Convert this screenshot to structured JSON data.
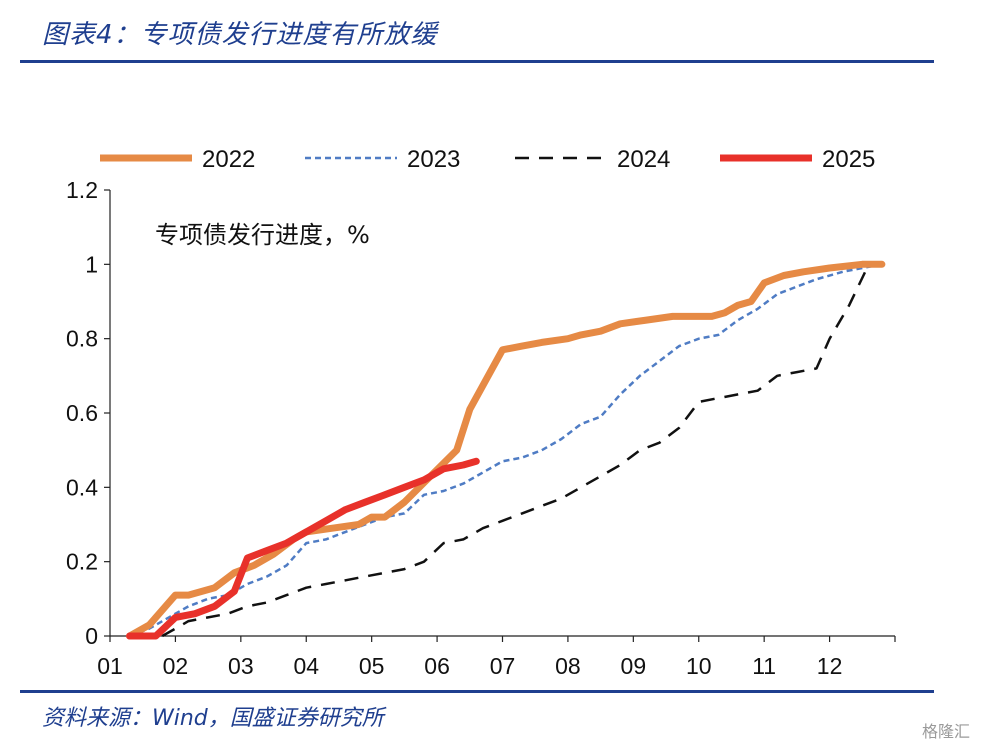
{
  "header": {
    "title": "图表4：专项债发行进度有所放缓"
  },
  "footer": {
    "source": "资料来源：Wind，国盛证券研究所",
    "watermark": "格隆汇"
  },
  "chart_data": {
    "type": "line",
    "annotation": "专项债发行进度，%",
    "x_ticks": [
      "01",
      "02",
      "03",
      "04",
      "05",
      "06",
      "07",
      "08",
      "09",
      "10",
      "11",
      "12"
    ],
    "y_ticks": [
      "0",
      "0.2",
      "0.4",
      "0.6",
      "0.8",
      "1",
      "1.2"
    ],
    "xlim": [
      1,
      13
    ],
    "ylim": [
      0,
      1.2
    ],
    "legend_position": "top",
    "series": [
      {
        "name": "2022",
        "color": "#e68a45",
        "style": "solid-thick",
        "x": [
          1.3,
          1.6,
          2.0,
          2.2,
          2.6,
          2.9,
          3.2,
          3.5,
          3.8,
          4.0,
          4.4,
          4.8,
          5.0,
          5.2,
          5.5,
          5.9,
          6.3,
          6.5,
          7.0,
          7.3,
          7.6,
          8.0,
          8.2,
          8.5,
          8.8,
          9.2,
          9.6,
          10.0,
          10.2,
          10.4,
          10.6,
          10.8,
          11.0,
          11.3,
          11.6,
          12.0,
          12.5,
          12.8
        ],
        "y": [
          0,
          0.03,
          0.11,
          0.11,
          0.13,
          0.17,
          0.19,
          0.22,
          0.26,
          0.28,
          0.29,
          0.3,
          0.32,
          0.32,
          0.36,
          0.43,
          0.5,
          0.61,
          0.77,
          0.78,
          0.79,
          0.8,
          0.81,
          0.82,
          0.84,
          0.85,
          0.86,
          0.86,
          0.86,
          0.87,
          0.89,
          0.9,
          0.95,
          0.97,
          0.98,
          0.99,
          1.0,
          1.0
        ]
      },
      {
        "name": "2023",
        "color": "#4f7cc4",
        "style": "dotted",
        "x": [
          1.3,
          1.6,
          1.9,
          2.2,
          2.5,
          2.8,
          3.1,
          3.4,
          3.7,
          4.0,
          4.3,
          4.6,
          4.9,
          5.2,
          5.5,
          5.8,
          6.1,
          6.4,
          6.7,
          7.0,
          7.3,
          7.6,
          7.9,
          8.2,
          8.5,
          8.8,
          9.1,
          9.4,
          9.7,
          10.0,
          10.3,
          10.6,
          10.9,
          11.2,
          11.5,
          11.8,
          12.2,
          12.5,
          12.8
        ],
        "y": [
          0,
          0.02,
          0.05,
          0.08,
          0.1,
          0.11,
          0.14,
          0.16,
          0.19,
          0.25,
          0.26,
          0.28,
          0.3,
          0.32,
          0.33,
          0.38,
          0.39,
          0.41,
          0.44,
          0.47,
          0.48,
          0.5,
          0.53,
          0.57,
          0.59,
          0.65,
          0.7,
          0.74,
          0.78,
          0.8,
          0.81,
          0.85,
          0.88,
          0.92,
          0.94,
          0.96,
          0.98,
          0.99,
          1.0
        ]
      },
      {
        "name": "2024",
        "color": "#111111",
        "style": "dashed",
        "x": [
          1.8,
          2.0,
          2.2,
          2.5,
          2.8,
          3.1,
          3.4,
          3.7,
          4.0,
          4.3,
          4.6,
          4.9,
          5.2,
          5.5,
          5.8,
          6.1,
          6.4,
          6.7,
          7.0,
          7.3,
          7.6,
          7.9,
          8.2,
          8.5,
          8.8,
          9.1,
          9.4,
          9.7,
          10.0,
          10.3,
          10.6,
          10.9,
          11.2,
          11.5,
          11.8,
          12.0,
          12.3,
          12.6
        ],
        "y": [
          0,
          0.02,
          0.04,
          0.05,
          0.06,
          0.08,
          0.09,
          0.11,
          0.13,
          0.14,
          0.15,
          0.16,
          0.17,
          0.18,
          0.2,
          0.25,
          0.26,
          0.29,
          0.31,
          0.33,
          0.35,
          0.37,
          0.4,
          0.43,
          0.46,
          0.5,
          0.52,
          0.56,
          0.63,
          0.64,
          0.65,
          0.66,
          0.7,
          0.71,
          0.72,
          0.8,
          0.89,
          1.0
        ]
      },
      {
        "name": "2025",
        "color": "#e8312a",
        "style": "solid-thick",
        "x": [
          1.3,
          1.7,
          2.0,
          2.3,
          2.6,
          2.9,
          3.1,
          3.4,
          3.7,
          4.0,
          4.3,
          4.6,
          4.9,
          5.2,
          5.5,
          5.8,
          6.1,
          6.4,
          6.6
        ],
        "y": [
          0,
          0,
          0.05,
          0.06,
          0.08,
          0.12,
          0.21,
          0.23,
          0.25,
          0.28,
          0.31,
          0.34,
          0.36,
          0.38,
          0.4,
          0.42,
          0.45,
          0.46,
          0.47
        ]
      }
    ]
  }
}
